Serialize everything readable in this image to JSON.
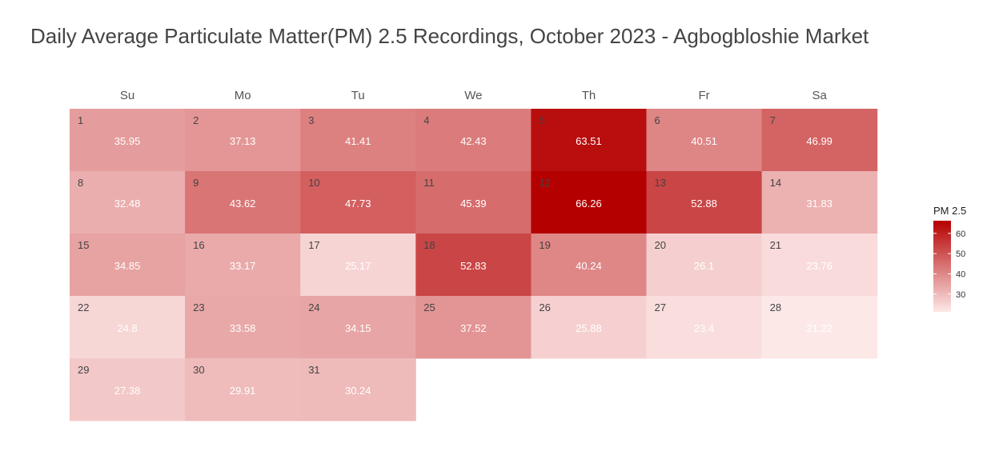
{
  "title": "Daily Average Particulate Matter(PM) 2.5 Recordings, October 2023 - Agbogbloshie Market",
  "chart_data": {
    "type": "heatmap",
    "title": "Daily Average Particulate Matter(PM) 2.5 Recordings, October 2023 - Agbogbloshie Market",
    "weekdays": [
      "Su",
      "Mo",
      "Tu",
      "We",
      "Th",
      "Fr",
      "Sa"
    ],
    "first_weekday_index": 0,
    "days": [
      1,
      2,
      3,
      4,
      5,
      6,
      7,
      8,
      9,
      10,
      11,
      12,
      13,
      14,
      15,
      16,
      17,
      18,
      19,
      20,
      21,
      22,
      23,
      24,
      25,
      26,
      27,
      28,
      29,
      30,
      31
    ],
    "values": [
      35.95,
      37.13,
      41.41,
      42.43,
      63.51,
      40.51,
      46.99,
      32.48,
      43.62,
      47.73,
      45.39,
      66.26,
      52.88,
      31.83,
      34.85,
      33.17,
      25.17,
      52.83,
      40.24,
      26.1,
      23.76,
      24.8,
      33.58,
      34.15,
      37.52,
      25.88,
      23.4,
      21.22,
      27.38,
      29.91,
      30.24
    ],
    "legend": {
      "title": "PM 2.5",
      "ticks": [
        30,
        40,
        50,
        60
      ],
      "range": [
        21.22,
        66.26
      ]
    },
    "color_low": "#fde8e8",
    "color_high": "#b50000"
  }
}
